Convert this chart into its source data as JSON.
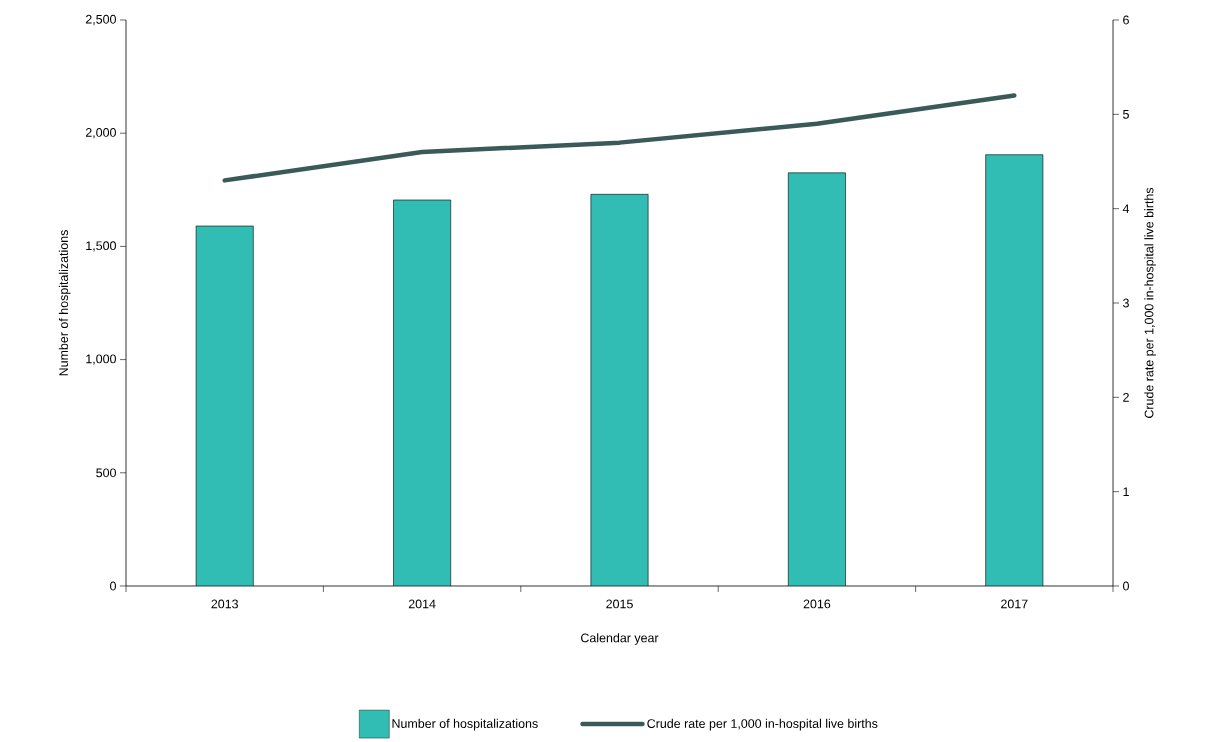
{
  "chart_data": {
    "type": "bar",
    "xlabel": "Calendar year",
    "ylabel": "Number of hospitalizations",
    "y2label": "Crude rate per 1,000 in-hospital live births",
    "categories": [
      "2013",
      "2014",
      "2015",
      "2016",
      "2017"
    ],
    "series": [
      {
        "name": "Number of hospitalizations",
        "color": "#31bdb4",
        "values": [
          1590,
          1705,
          1730,
          1825,
          1905
        ]
      },
      {
        "name": "Crude rate per 1,000 in-hospital live births",
        "type": "line",
        "axis": "y2",
        "color": "#3a5a5a",
        "values": [
          4.3,
          4.6,
          4.7,
          4.9,
          5.2
        ]
      }
    ],
    "ylim": [
      0,
      2500
    ],
    "yticks": [
      0,
      500,
      {
        "value": 1000,
        "label": "1,000"
      },
      {
        "value": 1500,
        "label": "1,500"
      },
      {
        "value": 2000,
        "label": "2,000"
      },
      {
        "value": 2500,
        "label": "2,500"
      }
    ],
    "y2lim": [
      0,
      6
    ],
    "y2ticks": [
      0,
      1,
      2,
      3,
      4,
      5,
      6
    ],
    "legend": "bottom"
  }
}
